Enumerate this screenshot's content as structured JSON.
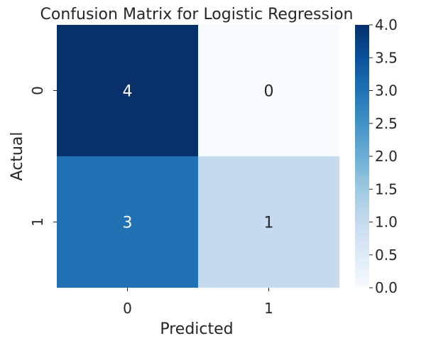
{
  "chart_data": {
    "type": "heatmap",
    "title": "Confusion Matrix for Logistic Regression",
    "xlabel": "Predicted",
    "ylabel": "Actual",
    "x_categories": [
      "0",
      "1"
    ],
    "y_categories": [
      "0",
      "1"
    ],
    "values": [
      [
        4,
        0
      ],
      [
        3,
        1
      ]
    ],
    "annotations": true,
    "colormap": "Blues",
    "color_range": [
      0.0,
      4.0
    ],
    "colors": {
      "low": "#f7fbff",
      "high": "#08306b"
    },
    "colorbar": {
      "ticks": [
        0.0,
        0.5,
        1.0,
        1.5,
        2.0,
        2.5,
        3.0,
        3.5,
        4.0
      ],
      "tick_labels": [
        "0.0",
        "0.5",
        "1.0",
        "1.5",
        "2.0",
        "2.5",
        "3.0",
        "3.5",
        "4.0"
      ]
    },
    "legend_placement": "right",
    "grid": false
  }
}
